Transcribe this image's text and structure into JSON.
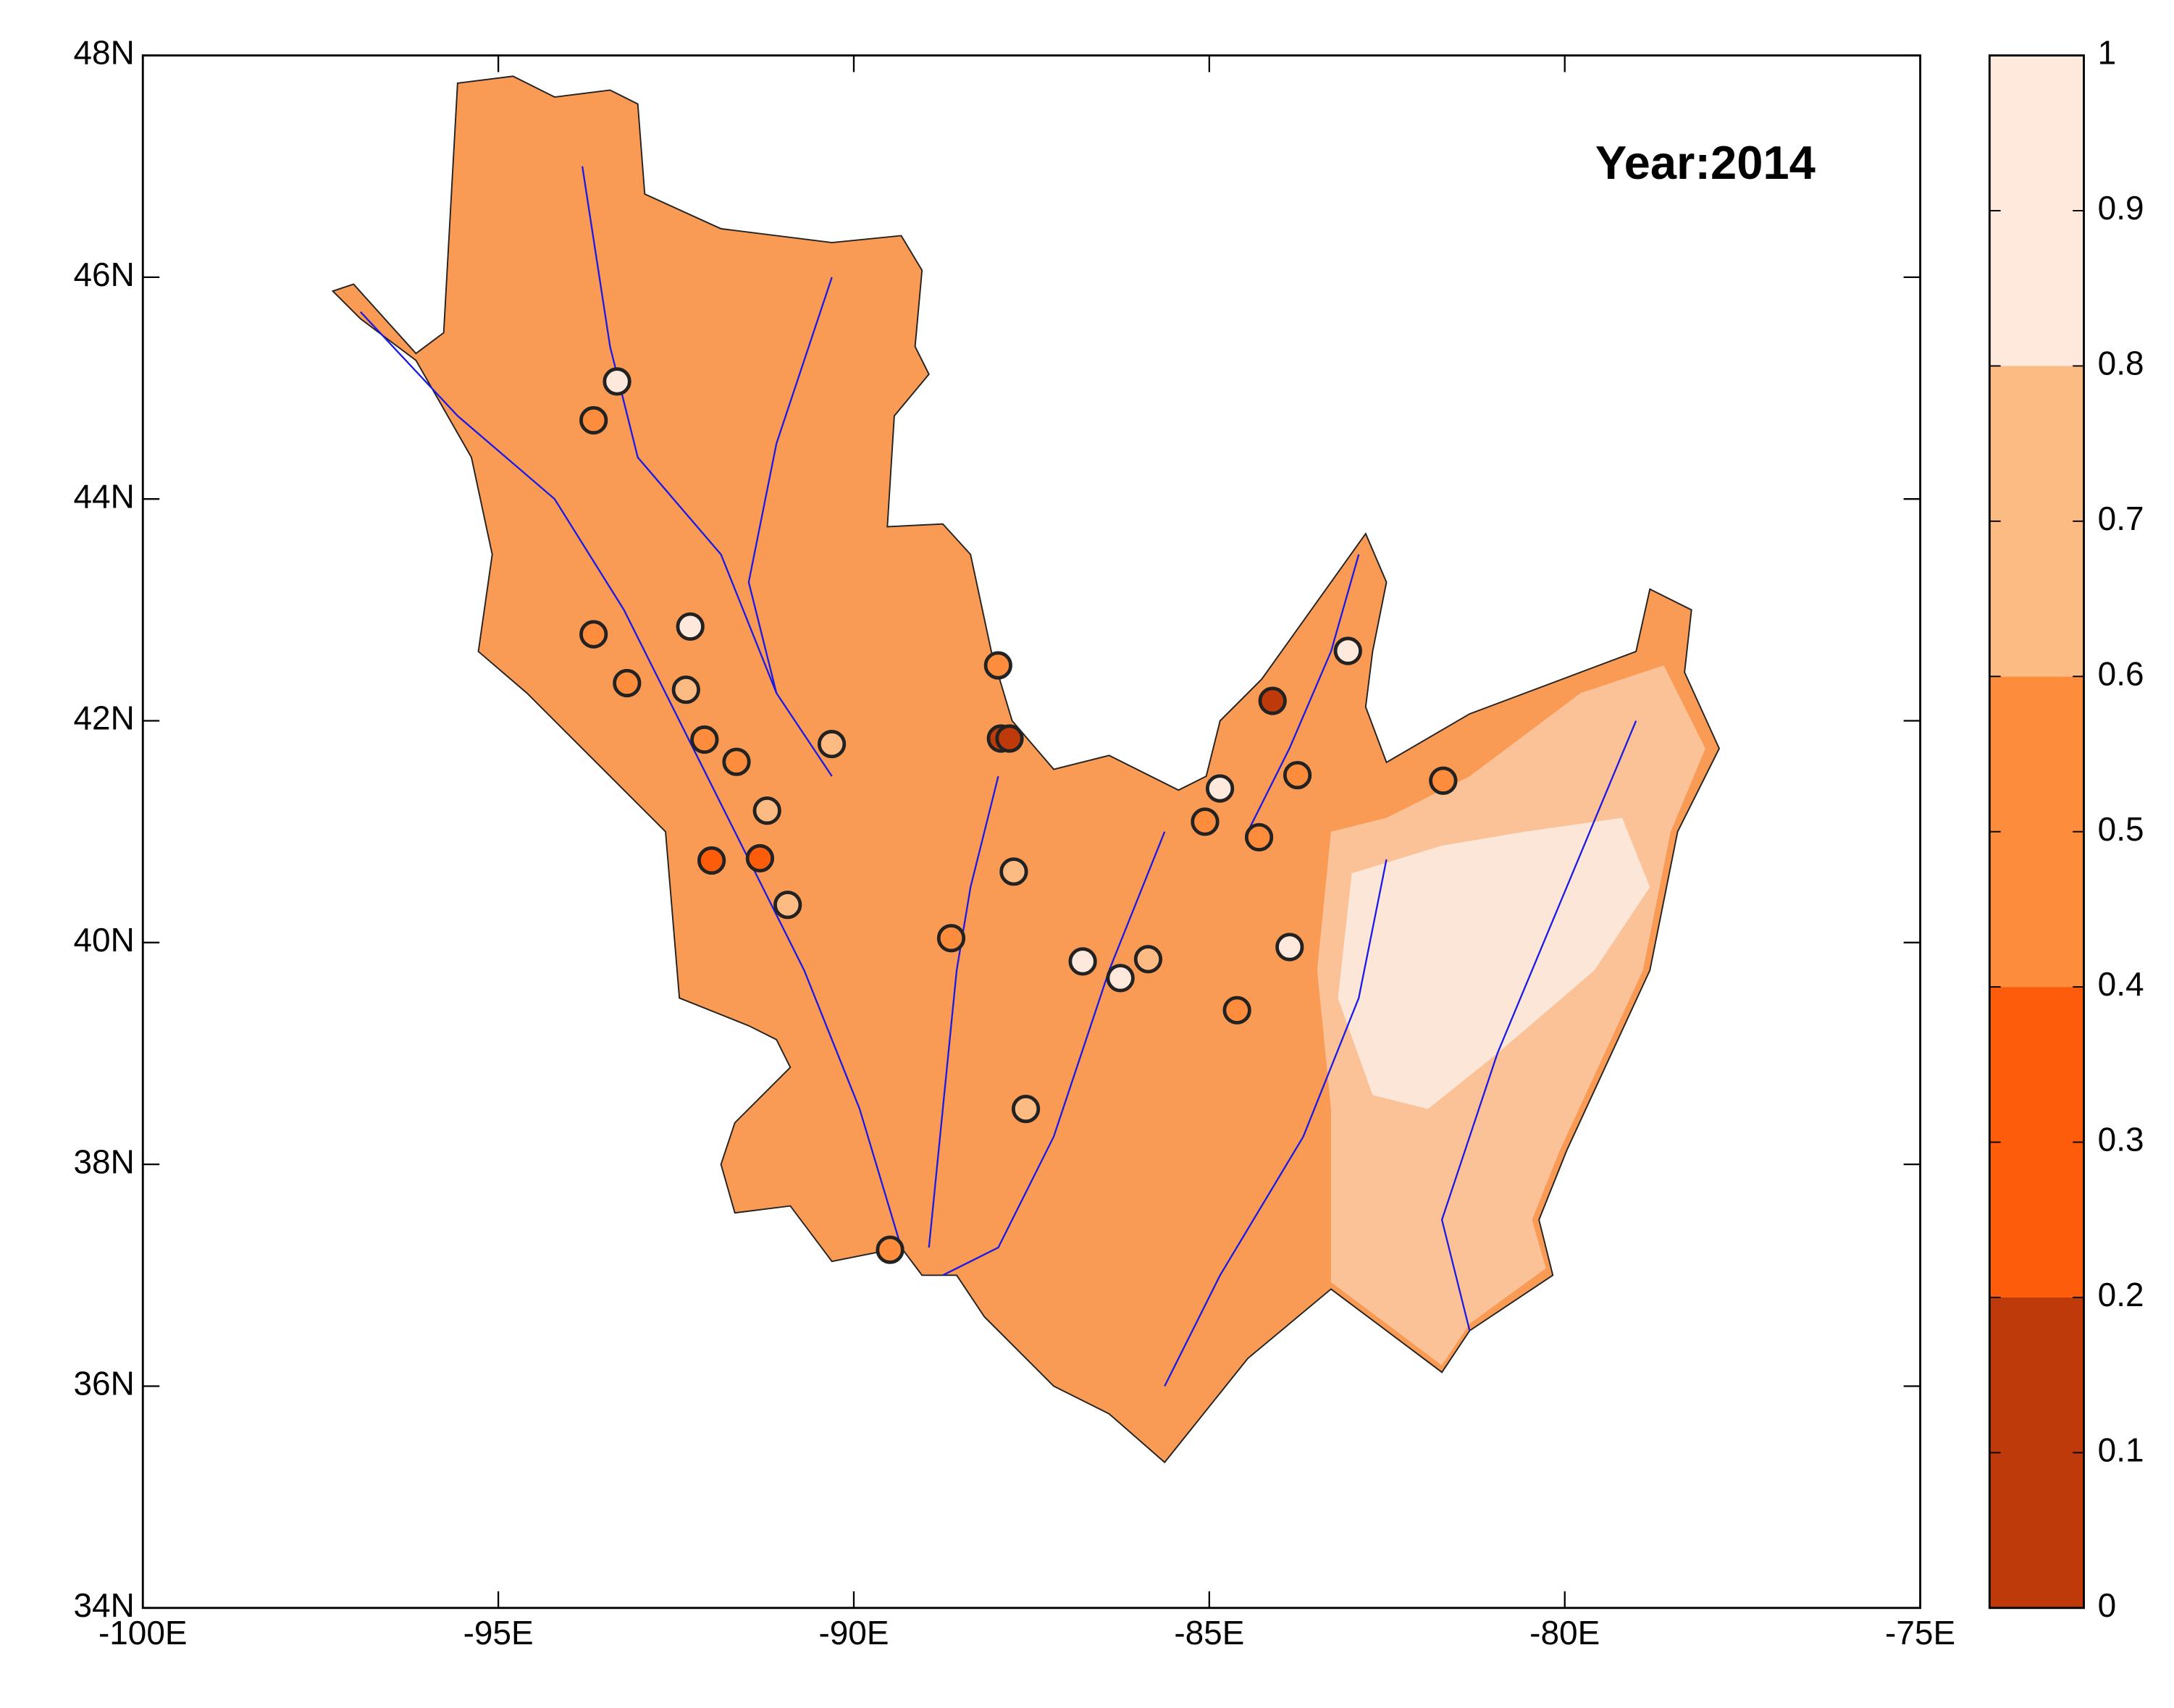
{
  "chart_data": {
    "type": "scatter",
    "annotation": "Year:2014",
    "x": [
      -93.33,
      -93.66,
      -93.66,
      -92.3,
      -93.19,
      -92.36,
      -92.1,
      -91.65,
      -91.22,
      -90.31,
      -92.0,
      -91.32,
      -90.93,
      -87.97,
      -87.93,
      -87.81,
      -87.75,
      -88.63,
      -86.78,
      -86.25,
      -85.86,
      -87.58,
      -89.49,
      -84.85,
      -85.06,
      -84.3,
      -84.11,
      -83.76,
      -83.05,
      -81.71,
      -83.87,
      -84.61
    ],
    "y": [
      45.06,
      44.71,
      42.78,
      42.85,
      42.34,
      42.28,
      41.83,
      41.63,
      41.19,
      41.79,
      40.74,
      40.76,
      40.34,
      42.5,
      41.84,
      41.84,
      40.64,
      40.04,
      39.83,
      39.68,
      39.85,
      38.5,
      37.23,
      41.39,
      41.09,
      40.95,
      42.18,
      41.51,
      42.63,
      41.46,
      39.96,
      39.39
    ],
    "values": [
      0.9,
      0.5,
      0.5,
      0.9,
      0.5,
      0.7,
      0.5,
      0.5,
      0.7,
      0.7,
      0.3,
      0.3,
      0.7,
      0.5,
      0.1,
      0.1,
      0.7,
      0.5,
      0.9,
      0.9,
      0.7,
      0.7,
      0.5,
      0.9,
      0.5,
      0.5,
      0.1,
      0.5,
      0.9,
      0.5,
      0.9,
      0.5
    ],
    "xlim": [
      -100,
      -75
    ],
    "ylim": [
      34,
      48
    ],
    "xticks": [
      {
        "value": -100,
        "label": "-100E"
      },
      {
        "value": -95,
        "label": "-95E"
      },
      {
        "value": -90,
        "label": "-90E"
      },
      {
        "value": -85,
        "label": "-85E"
      },
      {
        "value": -80,
        "label": "-80E"
      },
      {
        "value": -75,
        "label": "-75E"
      }
    ],
    "yticks": [
      {
        "value": 34,
        "label": "34N"
      },
      {
        "value": 36,
        "label": "36N"
      },
      {
        "value": 38,
        "label": "38N"
      },
      {
        "value": 40,
        "label": "40N"
      },
      {
        "value": 42,
        "label": "42N"
      },
      {
        "value": 44,
        "label": "44N"
      },
      {
        "value": 46,
        "label": "46N"
      },
      {
        "value": 48,
        "label": "48N"
      }
    ],
    "colorbar": {
      "clim": [
        0,
        1
      ],
      "ticks": [
        0,
        0.1,
        0.2,
        0.3,
        0.4,
        0.5,
        0.6,
        0.7,
        0.8,
        0.9,
        1
      ],
      "levels": [
        0,
        0.2,
        0.4,
        0.6,
        0.8,
        1
      ],
      "colors": [
        "#bf3a0a",
        "#fd5c0a",
        "#fd8d3c",
        "#fdbb84",
        "#fee9dc"
      ]
    }
  }
}
